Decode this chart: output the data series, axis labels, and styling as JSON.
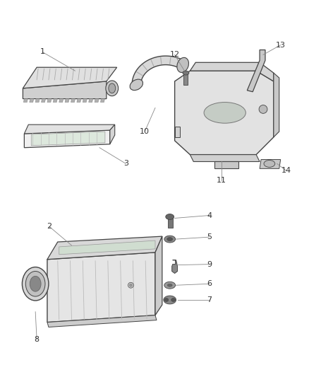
{
  "background_color": "#ffffff",
  "figsize": [
    4.38,
    5.33
  ],
  "dpi": 100,
  "line_color": "#444444",
  "text_color": "#333333",
  "part_fill": "#e8e8e8",
  "part_dark": "#c0c0c0",
  "part_darker": "#999999"
}
